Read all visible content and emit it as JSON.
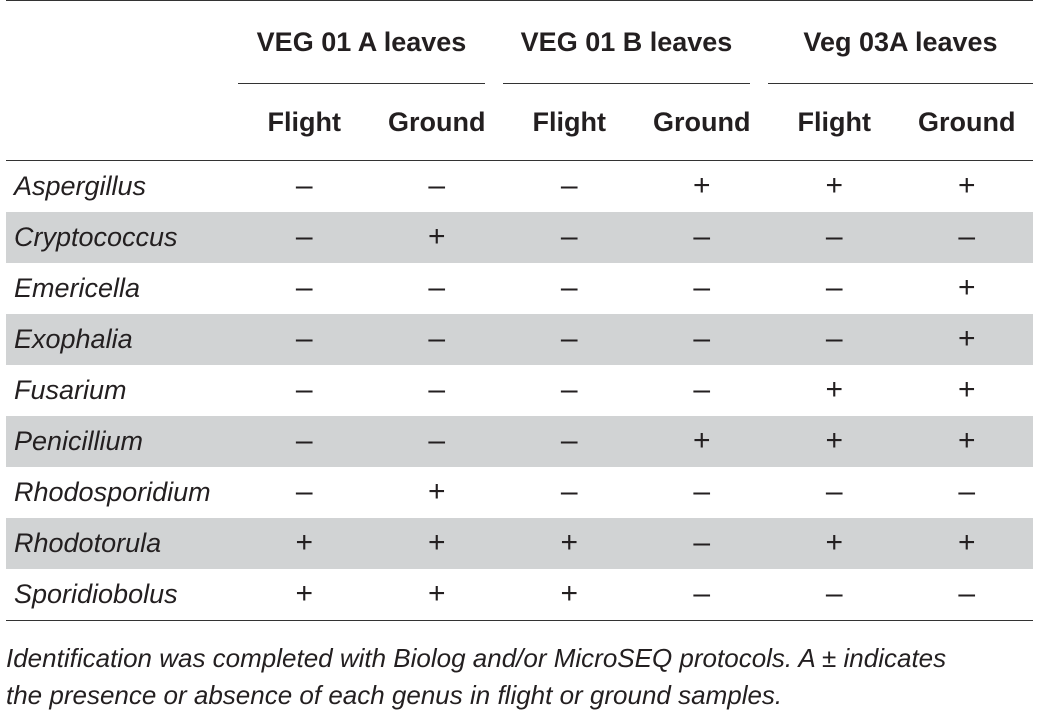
{
  "table": {
    "groups": [
      {
        "label": "VEG 01 A leaves"
      },
      {
        "label": "VEG 01 B leaves"
      },
      {
        "label": "Veg 03A leaves"
      }
    ],
    "subheaders": [
      "Flight",
      "Ground",
      "Flight",
      "Ground",
      "Flight",
      "Ground"
    ],
    "rows": [
      {
        "genus": "Aspergillus",
        "values": [
          "–",
          "–",
          "–",
          "+",
          "+",
          "+"
        ]
      },
      {
        "genus": "Cryptococcus",
        "values": [
          "–",
          "+",
          "–",
          "–",
          "–",
          "–"
        ]
      },
      {
        "genus": "Emericella",
        "values": [
          "–",
          "–",
          "–",
          "–",
          "–",
          "+"
        ]
      },
      {
        "genus": "Exophalia",
        "values": [
          "–",
          "–",
          "–",
          "–",
          "–",
          "+"
        ]
      },
      {
        "genus": "Fusarium",
        "values": [
          "–",
          "–",
          "–",
          "–",
          "+",
          "+"
        ]
      },
      {
        "genus": "Penicillium",
        "values": [
          "–",
          "–",
          "–",
          "+",
          "+",
          "+"
        ]
      },
      {
        "genus": "Rhodosporidium",
        "values": [
          "–",
          "+",
          "–",
          "–",
          "–",
          "–"
        ]
      },
      {
        "genus": "Rhodotorula",
        "values": [
          "+",
          "+",
          "+",
          "–",
          "+",
          "+"
        ]
      },
      {
        "genus": "Sporidiobolus",
        "values": [
          "+",
          "+",
          "+",
          "–",
          "–",
          "–"
        ]
      }
    ]
  },
  "footnote": {
    "line1": "Identification was completed with Biolog and/or MicroSEQ protocols. A ± indicates",
    "line2": "the presence or absence of each genus in flight or ground samples."
  },
  "colors": {
    "text": "#231f20",
    "row_shade": "#d1d3d4",
    "rule": "#333333"
  }
}
